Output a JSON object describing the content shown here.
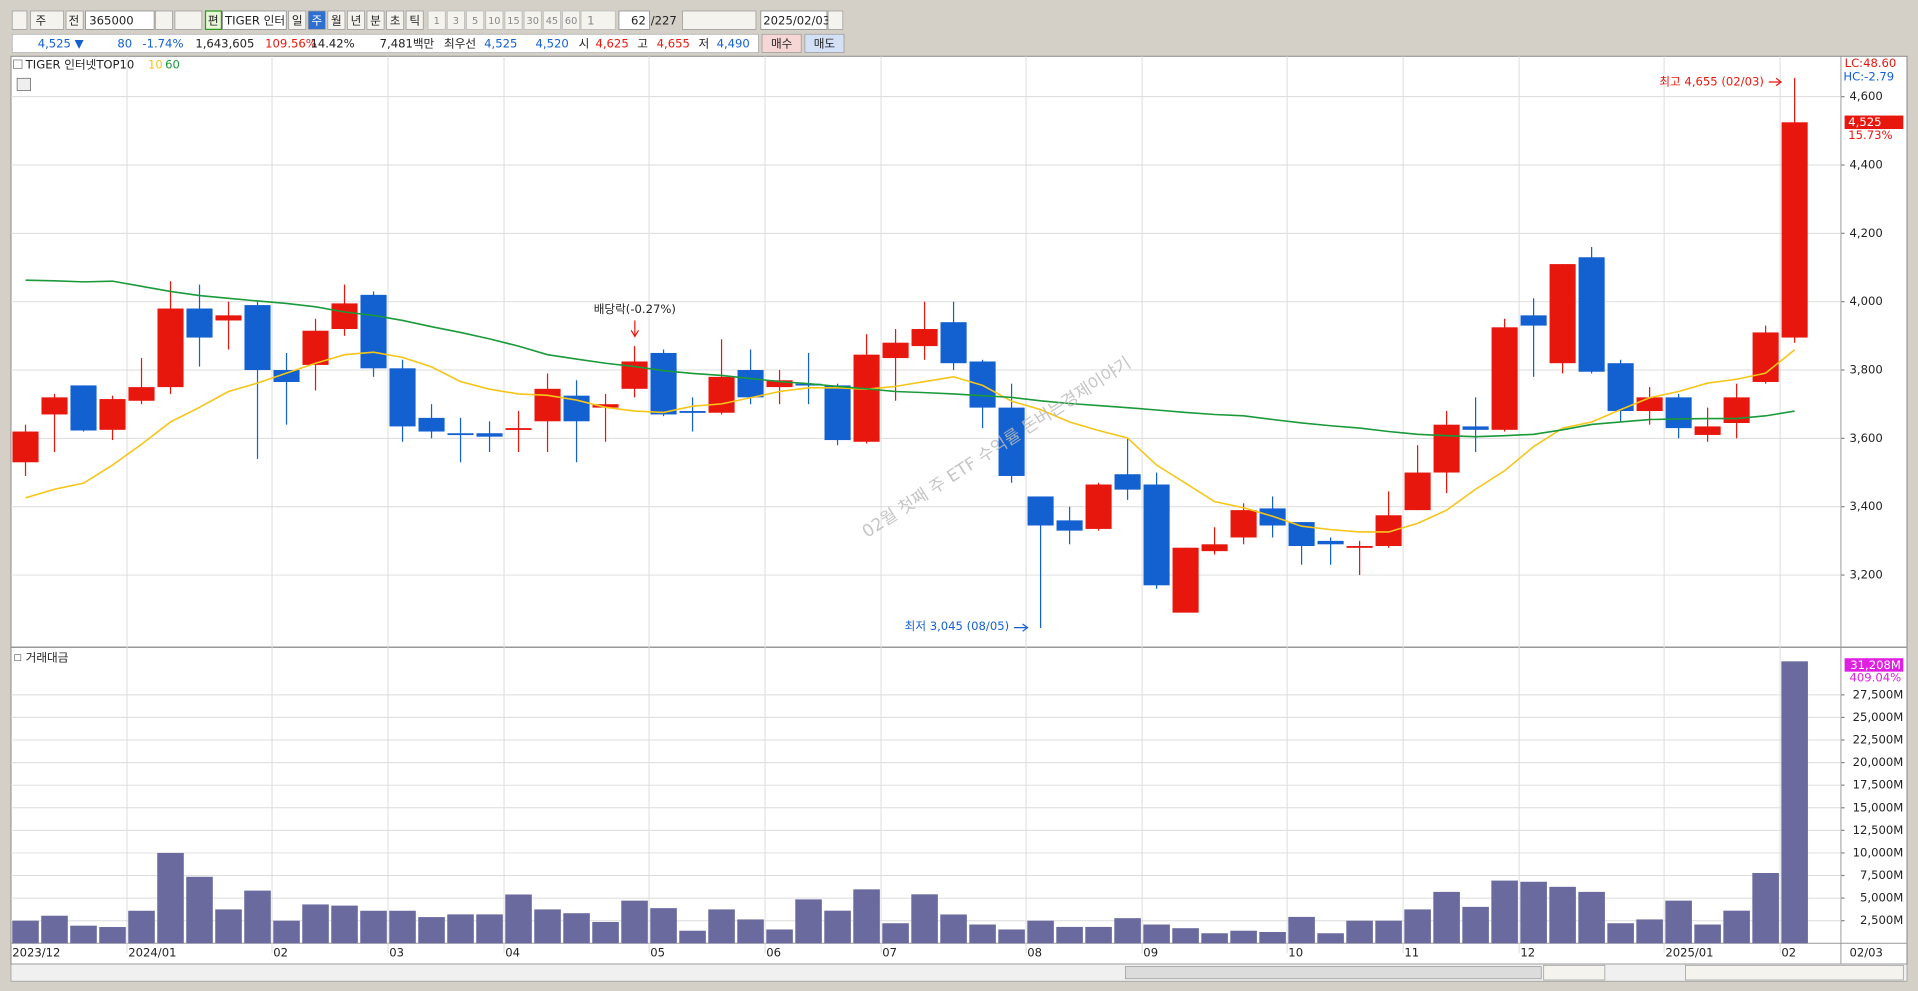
{
  "toolbar": {
    "period_select": "주",
    "scope": "전",
    "code": "365000",
    "name": "TIGER 인터",
    "edit": "편",
    "periods": [
      "일",
      "주",
      "월",
      "년",
      "분",
      "초",
      "틱"
    ],
    "intervals": [
      "1",
      "3",
      "5",
      "10",
      "15",
      "30",
      "45",
      "60"
    ],
    "multiplier": "1",
    "count": "62",
    "total": "/227",
    "date": "2025/02/03"
  },
  "info_bar": {
    "price": "4,525",
    "direction": "▼",
    "change": "80",
    "change_pct": "-1.74%",
    "volume": "1,643,605",
    "volume_ratio": "109.56%",
    "turnover_rate": "14.42%",
    "amount": "7,481백만",
    "best_quote": "최우선",
    "ask": "4,525",
    "bid": "4,520",
    "open_label": "시",
    "open": "4,625",
    "high_label": "고",
    "high": "4,655",
    "low_label": "저",
    "low": "4,490",
    "buy": "매수",
    "sell": "매도"
  },
  "chart_data": [
    {
      "type": "candlestick",
      "title": "TIGER 인터넷TOP10",
      "up_color": "#e8170e",
      "down_color": "#1360d0",
      "open": [
        3530,
        3670,
        3755,
        3625,
        3710,
        3750,
        3980,
        3945,
        3990,
        3800,
        3815,
        3920,
        4020,
        3805,
        3660,
        3615,
        3615,
        3625,
        3650,
        3725,
        3690,
        3745,
        3850,
        3680,
        3675,
        3800,
        3750,
        3760,
        3755,
        3590,
        3835,
        3870,
        3940,
        3825,
        3690,
        3430,
        3360,
        3335,
        3495,
        3465,
        3090,
        3270,
        3310,
        3395,
        3355,
        3300,
        3280,
        3285,
        3390,
        3500,
        3635,
        3625,
        3960,
        3820,
        4130,
        3820,
        3680,
        3720,
        3610,
        3645,
        3765,
        3895
      ],
      "high": [
        3640,
        3730,
        3755,
        3725,
        3835,
        4060,
        4050,
        4000,
        4000,
        3850,
        3950,
        4050,
        4030,
        3830,
        3700,
        3660,
        3650,
        3680,
        3790,
        3770,
        3730,
        3870,
        3860,
        3720,
        3890,
        3860,
        3800,
        3850,
        3760,
        3905,
        3920,
        4000,
        4000,
        3830,
        3760,
        3430,
        3400,
        3470,
        3600,
        3500,
        3280,
        3340,
        3410,
        3430,
        3355,
        3310,
        3300,
        3445,
        3580,
        3680,
        3720,
        3950,
        4010,
        4110,
        4160,
        3830,
        3750,
        3730,
        3690,
        3760,
        3930,
        4655
      ],
      "low": [
        3490,
        3560,
        3620,
        3595,
        3700,
        3730,
        3810,
        3860,
        3540,
        3640,
        3740,
        3900,
        3780,
        3590,
        3600,
        3530,
        3560,
        3560,
        3560,
        3530,
        3590,
        3720,
        3665,
        3620,
        3670,
        3700,
        3700,
        3700,
        3580,
        3585,
        3710,
        3830,
        3800,
        3630,
        3470,
        3045,
        3290,
        3330,
        3420,
        3160,
        3100,
        3260,
        3290,
        3310,
        3230,
        3230,
        3200,
        3280,
        3390,
        3440,
        3560,
        3620,
        3780,
        3790,
        3790,
        3650,
        3640,
        3600,
        3590,
        3600,
        3760,
        3880
      ],
      "close": [
        3620,
        3720,
        3623,
        3715,
        3750,
        3980,
        3895,
        3960,
        3800,
        3765,
        3915,
        3995,
        3805,
        3635,
        3620,
        3610,
        3605,
        3630,
        3745,
        3650,
        3700,
        3825,
        3670,
        3675,
        3780,
        3720,
        3770,
        3755,
        3595,
        3845,
        3880,
        3920,
        3820,
        3690,
        3490,
        3345,
        3330,
        3465,
        3450,
        3170,
        3280,
        3290,
        3390,
        3345,
        3285,
        3290,
        3285,
        3375,
        3500,
        3640,
        3625,
        3925,
        3930,
        4110,
        3795,
        3680,
        3720,
        3630,
        3635,
        3720,
        3910,
        4525
      ],
      "series": [
        {
          "name": "10",
          "color": "#f5c518",
          "values": [
            3426,
            3451,
            3469,
            3522,
            3583,
            3648,
            3691,
            3737,
            3762,
            3791,
            3820,
            3845,
            3852,
            3837,
            3809,
            3766,
            3744,
            3730,
            3726,
            3712,
            3691,
            3680,
            3676,
            3694,
            3701,
            3719,
            3737,
            3748,
            3748,
            3744,
            3752,
            3766,
            3780,
            3755,
            3709,
            3684,
            3648,
            3623,
            3601,
            3522,
            3469,
            3415,
            3397,
            3372,
            3343,
            3333,
            3326,
            3326,
            3351,
            3390,
            3451,
            3505,
            3576,
            3630,
            3648,
            3684,
            3719,
            3737,
            3762,
            3773,
            3791,
            3859
          ]
        },
        {
          "name": "60",
          "color": "#1a9a3a",
          "values": [
            4063,
            4061,
            4058,
            4060,
            4045,
            4030,
            4018,
            4010,
            4002,
            3995,
            3985,
            3970,
            3960,
            3945,
            3927,
            3910,
            3891,
            3870,
            3845,
            3832,
            3820,
            3810,
            3798,
            3790,
            3784,
            3775,
            3766,
            3760,
            3752,
            3745,
            3737,
            3734,
            3730,
            3725,
            3720,
            3710,
            3702,
            3696,
            3690,
            3683,
            3676,
            3670,
            3666,
            3655,
            3645,
            3637,
            3630,
            3620,
            3612,
            3608,
            3605,
            3608,
            3612,
            3625,
            3641,
            3648,
            3655,
            3657,
            3658,
            3658,
            3666,
            3680
          ]
        }
      ],
      "ylim": [
        2996,
        4711
      ],
      "yticks": [
        {
          "value": 3200,
          "label": "3,200"
        },
        {
          "value": 3400,
          "label": "3,400"
        },
        {
          "value": 3600,
          "label": "3,600"
        },
        {
          "value": 3800,
          "label": "3,800"
        },
        {
          "value": 4000,
          "label": "4,000"
        },
        {
          "value": 4200,
          "label": "4,200"
        },
        {
          "value": 4400,
          "label": "4,400"
        },
        {
          "value": 4600,
          "label": "4,600"
        }
      ],
      "annotations": [
        "최고 4,655 (02/03)",
        "배당락(-0.27%)",
        "최저 3,045 (08/05)"
      ],
      "watermark": "02월 첫째 주 ETF 수익률 돈버는경제이야기",
      "lc": "LC:48.60",
      "hc": "HC:-2.79",
      "price_tag": "4,525",
      "price_change": "15.73%"
    },
    {
      "type": "bar",
      "title": "거래대금",
      "color": "#6a6a9e",
      "categories": [
        "2023/12",
        null,
        null,
        null,
        "2024/01",
        null,
        null,
        null,
        null,
        "02",
        null,
        null,
        null,
        "03",
        null,
        null,
        null,
        "04",
        null,
        null,
        null,
        null,
        "05",
        null,
        null,
        null,
        "06",
        null,
        null,
        null,
        "07",
        null,
        null,
        null,
        null,
        "08",
        null,
        null,
        null,
        "09",
        null,
        null,
        null,
        null,
        "10",
        null,
        null,
        null,
        "11",
        null,
        null,
        null,
        "12",
        null,
        null,
        null,
        null,
        "2025/01",
        null,
        null,
        null,
        "02"
      ],
      "values": [
        2500,
        3050,
        1950,
        1800,
        3600,
        10000,
        7360,
        3750,
        5830,
        2500,
        4300,
        4170,
        3600,
        3600,
        2900,
        3200,
        3200,
        5400,
        3750,
        3330,
        2360,
        4720,
        3890,
        1390,
        3750,
        2640,
        1530,
        4860,
        3610,
        5970,
        2220,
        5420,
        3190,
        2080,
        1530,
        2500,
        1810,
        1810,
        2780,
        2080,
        1670,
        1110,
        1390,
        1250,
        2920,
        1110,
        2500,
        2500,
        3750,
        5690,
        4030,
        6940,
        6810,
        6250,
        5690,
        2220,
        2640,
        4720,
        2080,
        3610,
        7780,
        31208
      ],
      "ylim": [
        0,
        32500
      ],
      "yticks": [
        {
          "value": 2500,
          "label": "2,500M"
        },
        {
          "value": 5000,
          "label": "5,000M"
        },
        {
          "value": 7500,
          "label": "7,500M"
        },
        {
          "value": 10000,
          "label": "10,000M"
        },
        {
          "value": 12500,
          "label": "12,500M"
        },
        {
          "value": 15000,
          "label": "15,000M"
        },
        {
          "value": 17500,
          "label": "17,500M"
        },
        {
          "value": 20000,
          "label": "20,000M"
        },
        {
          "value": 22500,
          "label": "22,500M"
        },
        {
          "value": 25000,
          "label": "25,000M"
        },
        {
          "value": 27500,
          "label": "27,500M"
        }
      ],
      "last_label": "31,208M",
      "last_change": "409.04%",
      "last_date": "02/03"
    }
  ]
}
